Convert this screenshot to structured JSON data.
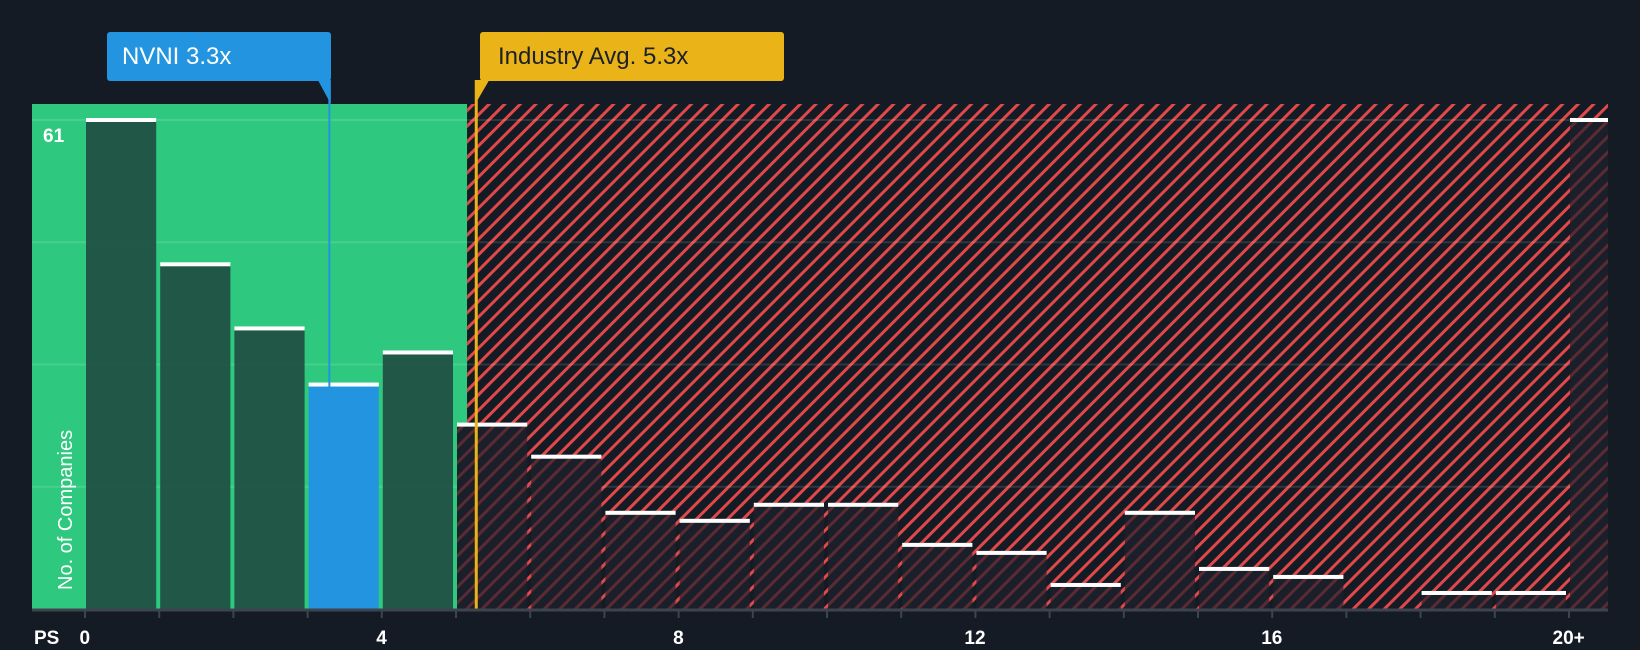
{
  "chart_data": {
    "type": "bar",
    "title": "",
    "xlabel": "PS",
    "ylabel": "No. of Companies",
    "x_tick_labels": [
      "0",
      "4",
      "8",
      "12",
      "16",
      "20+"
    ],
    "x_tick_positions": [
      0,
      4,
      8,
      12,
      16,
      20
    ],
    "y_tick_labels": [
      "61"
    ],
    "ylim": [
      0,
      61
    ],
    "grid": true,
    "bins": [
      "0-1",
      "1-2",
      "2-3",
      "3-4",
      "4-5",
      "5-6",
      "6-7",
      "7-8",
      "8-9",
      "9-10",
      "10-11",
      "11-12",
      "12-13",
      "13-14",
      "14-15",
      "15-16",
      "16-17",
      "17-18",
      "18-19",
      "19-20",
      "20+"
    ],
    "values": [
      61,
      43,
      35,
      28,
      32,
      23,
      19,
      12,
      11,
      13,
      13,
      8,
      7,
      3,
      12,
      5,
      4,
      0,
      2,
      2,
      61
    ],
    "highlighted_bin_index": 3,
    "annotations": [
      {
        "label": "NVNI 3.3x",
        "x": 3.3,
        "color": "#2394df"
      },
      {
        "label": "Industry Avg. 5.3x",
        "x": 5.3,
        "color": "#eab317"
      }
    ],
    "regions": [
      {
        "name": "undervalued",
        "from": 0,
        "to": 5.15,
        "color": "#2ec97f"
      },
      {
        "name": "overvalued",
        "from": 5.15,
        "to": 20.5,
        "pattern": "red-diagonal-hatch",
        "color": "#e0484a"
      }
    ]
  },
  "callouts": {
    "company": "NVNI 3.3x",
    "industry": "Industry Avg. 5.3x"
  },
  "axis": {
    "x_title": "PS",
    "y_title": "No. of Companies",
    "y_max_label": "61"
  },
  "colors": {
    "background": "#151b24",
    "green_region": "#2ec97f",
    "bar_in_green": "#1f4a40",
    "company_bar": "#2394df",
    "industry_line": "#eab317",
    "hatch": "#e0484a",
    "bar_top": "#ffffff",
    "axis": "#3d4450"
  }
}
